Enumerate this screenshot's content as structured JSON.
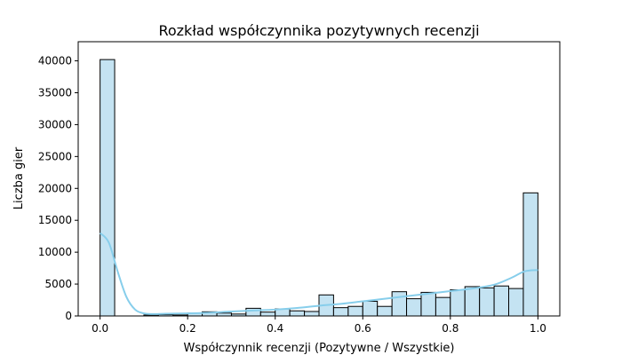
{
  "chart_data": {
    "type": "bar",
    "title": "Rozkład współczynnika pozytywnych recenzji",
    "xlabel": "Współczynnik recenzji (Pozytywne / Wszystkie)",
    "ylabel": "Liczba gier",
    "xlim": [
      -0.05,
      1.05
    ],
    "ylim": [
      0,
      43000
    ],
    "x_ticks": [
      0.0,
      0.2,
      0.4,
      0.6,
      0.8,
      1.0
    ],
    "x_tick_labels": [
      "0.0",
      "0.2",
      "0.4",
      "0.6",
      "0.8",
      "1.0"
    ],
    "y_ticks": [
      0,
      5000,
      10000,
      15000,
      20000,
      25000,
      30000,
      35000,
      40000
    ],
    "y_tick_labels": [
      "0",
      "5000",
      "10000",
      "15000",
      "20000",
      "25000",
      "30000",
      "35000",
      "40000"
    ],
    "grid": false,
    "bar_color": "#c4e3f2",
    "bar_edge_color": "#000000",
    "kde_color": "#87ceeb",
    "bins": [
      {
        "start": 0.0,
        "end": 0.0333,
        "count": 40200
      },
      {
        "start": 0.0333,
        "end": 0.0667,
        "count": 0
      },
      {
        "start": 0.0667,
        "end": 0.1,
        "count": 0
      },
      {
        "start": 0.1,
        "end": 0.1333,
        "count": 150
      },
      {
        "start": 0.1333,
        "end": 0.1667,
        "count": 200
      },
      {
        "start": 0.1667,
        "end": 0.2,
        "count": 150
      },
      {
        "start": 0.2,
        "end": 0.2333,
        "count": 450
      },
      {
        "start": 0.2333,
        "end": 0.2667,
        "count": 650
      },
      {
        "start": 0.2667,
        "end": 0.3,
        "count": 450
      },
      {
        "start": 0.3,
        "end": 0.3333,
        "count": 300
      },
      {
        "start": 0.3333,
        "end": 0.3667,
        "count": 1200
      },
      {
        "start": 0.3667,
        "end": 0.4,
        "count": 600
      },
      {
        "start": 0.4,
        "end": 0.4333,
        "count": 1100
      },
      {
        "start": 0.4333,
        "end": 0.4667,
        "count": 800
      },
      {
        "start": 0.4667,
        "end": 0.5,
        "count": 700
      },
      {
        "start": 0.5,
        "end": 0.5333,
        "count": 3300
      },
      {
        "start": 0.5333,
        "end": 0.5667,
        "count": 1300
      },
      {
        "start": 0.5667,
        "end": 0.6,
        "count": 1500
      },
      {
        "start": 0.6,
        "end": 0.6333,
        "count": 2300
      },
      {
        "start": 0.6333,
        "end": 0.6667,
        "count": 1500
      },
      {
        "start": 0.6667,
        "end": 0.7,
        "count": 3800
      },
      {
        "start": 0.7,
        "end": 0.7333,
        "count": 2700
      },
      {
        "start": 0.7333,
        "end": 0.7667,
        "count": 3700
      },
      {
        "start": 0.7667,
        "end": 0.8,
        "count": 2900
      },
      {
        "start": 0.8,
        "end": 0.8333,
        "count": 4100
      },
      {
        "start": 0.8333,
        "end": 0.8667,
        "count": 4600
      },
      {
        "start": 0.8667,
        "end": 0.9,
        "count": 4400
      },
      {
        "start": 0.9,
        "end": 0.9333,
        "count": 4700
      },
      {
        "start": 0.9333,
        "end": 0.9667,
        "count": 4300
      },
      {
        "start": 0.9667,
        "end": 1.0,
        "count": 19300
      }
    ],
    "kde": {
      "x": [
        0.0,
        0.02,
        0.04,
        0.06,
        0.08,
        0.1,
        0.12,
        0.15,
        0.2,
        0.25,
        0.3,
        0.35,
        0.4,
        0.45,
        0.5,
        0.55,
        0.6,
        0.65,
        0.7,
        0.75,
        0.8,
        0.85,
        0.9,
        0.94,
        0.97,
        1.0
      ],
      "y": [
        13000,
        11500,
        7000,
        3000,
        1000,
        400,
        300,
        350,
        400,
        500,
        700,
        850,
        1000,
        1250,
        1600,
        1900,
        2300,
        2700,
        3100,
        3500,
        3900,
        4300,
        4900,
        6000,
        7000,
        7200
      ]
    }
  }
}
